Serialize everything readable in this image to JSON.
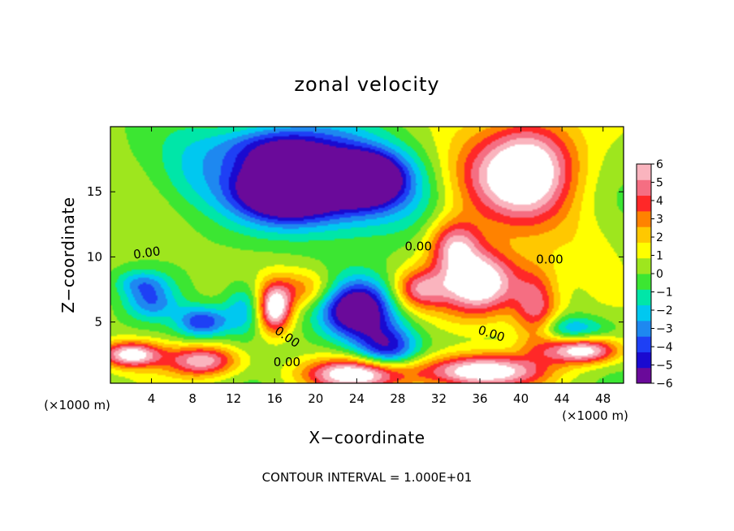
{
  "chart_data": {
    "type": "heatmap",
    "title": "zonal velocity",
    "xlabel": "X−coordinate",
    "ylabel": "Z−coordinate",
    "x_unit": "(×1000 m)",
    "y_unit": "(×1000 m)",
    "xlim": [
      0,
      50
    ],
    "ylim": [
      0.3,
      20
    ],
    "x_ticks": [
      4,
      8,
      12,
      16,
      20,
      24,
      28,
      32,
      36,
      40,
      44,
      48
    ],
    "y_ticks": [
      5,
      10,
      15
    ],
    "x_tick_labels": [
      "4",
      "8",
      "12",
      "16",
      "20",
      "24",
      "28",
      "32",
      "36",
      "40",
      "44",
      "48"
    ],
    "y_tick_labels": [
      "5",
      "10",
      "15"
    ],
    "colorbar": {
      "range": [
        -6,
        6
      ],
      "tick_labels": [
        "6",
        "5",
        "4",
        "3",
        "2",
        "1",
        "0",
        "−1",
        "−2",
        "−3",
        "−4",
        "−5",
        "−6"
      ],
      "colors": [
        "#6a0a9a",
        "#1a0ad0",
        "#1e40f5",
        "#1e88f0",
        "#00c8f0",
        "#00e6a8",
        "#3ce632",
        "#9ee61e",
        "#ffff00",
        "#ffc800",
        "#ff8200",
        "#ff2828",
        "#f56e82",
        "#fab4be"
      ]
    },
    "contour_labels": [
      {
        "text": "0.00",
        "x": 3.6,
        "z": 10.0,
        "rotate": -8
      },
      {
        "text": "0.00",
        "x": 30.0,
        "z": 10.5,
        "rotate": 0
      },
      {
        "text": "0.00",
        "x": 42.8,
        "z": 9.5,
        "rotate": 0
      },
      {
        "text": "0.00",
        "x": 17.0,
        "z": 3.6,
        "rotate": 35
      },
      {
        "text": "0.00",
        "x": 17.2,
        "z": 1.6,
        "rotate": 0
      },
      {
        "text": "0.00",
        "x": 37.0,
        "z": 3.8,
        "rotate": 18
      }
    ],
    "footer": "CONTOUR INTERVAL = 1.000E+01",
    "field_features": [
      {
        "x": 17.0,
        "z": 15.2,
        "value": -7.5,
        "sx": 4.8,
        "sz": 2.2
      },
      {
        "x": 22.0,
        "z": 15.6,
        "value": -6.0,
        "sx": 8.5,
        "sz": 3.4
      },
      {
        "x": 25.0,
        "z": 16.0,
        "value": -7.0,
        "sx": 3.2,
        "sz": 1.8
      },
      {
        "x": 16.0,
        "z": 18.5,
        "value": -4.0,
        "sx": 6.0,
        "sz": 1.8
      },
      {
        "x": 8.0,
        "z": 16.5,
        "value": -1.8,
        "sx": 4.0,
        "sz": 3.0
      },
      {
        "x": 41.0,
        "z": 16.8,
        "value": 6.5,
        "sx": 4.5,
        "sz": 4.0
      },
      {
        "x": 36.0,
        "z": 16.0,
        "value": 3.5,
        "sx": 5.0,
        "sz": 3.5
      },
      {
        "x": 36.0,
        "z": 8.0,
        "value": 7.5,
        "sx": 4.0,
        "sz": 2.5
      },
      {
        "x": 33.5,
        "z": 11.0,
        "value": 4.5,
        "sx": 2.5,
        "sz": 2.0
      },
      {
        "x": 41.5,
        "z": 6.0,
        "value": 4.5,
        "sx": 2.2,
        "sz": 3.0
      },
      {
        "x": 24.0,
        "z": 6.0,
        "value": -7.5,
        "sx": 3.5,
        "sz": 2.2
      },
      {
        "x": 27.0,
        "z": 3.0,
        "value": -5.0,
        "sx": 3.0,
        "sz": 1.8
      },
      {
        "x": 16.0,
        "z": 6.0,
        "value": 6.5,
        "sx": 1.6,
        "sz": 1.8
      },
      {
        "x": 19.0,
        "z": 7.5,
        "value": 3.0,
        "sx": 3.5,
        "sz": 1.5
      },
      {
        "x": 13.0,
        "z": 6.0,
        "value": -3.0,
        "sx": 2.0,
        "sz": 2.0
      },
      {
        "x": 9.0,
        "z": 5.0,
        "value": -4.5,
        "sx": 2.5,
        "sz": 1.2
      },
      {
        "x": 4.0,
        "z": 6.5,
        "value": -3.0,
        "sx": 2.5,
        "sz": 1.3
      },
      {
        "x": 2.0,
        "z": 2.5,
        "value": 6.5,
        "sx": 3.0,
        "sz": 1.0
      },
      {
        "x": 9.0,
        "z": 2.0,
        "value": 5.5,
        "sx": 3.5,
        "sz": 1.2
      },
      {
        "x": 24.0,
        "z": 1.0,
        "value": 7.0,
        "sx": 5.0,
        "sz": 1.2
      },
      {
        "x": 36.0,
        "z": 1.2,
        "value": 7.0,
        "sx": 6.0,
        "sz": 1.3
      },
      {
        "x": 46.0,
        "z": 2.8,
        "value": 6.5,
        "sx": 3.5,
        "sz": 1.0
      },
      {
        "x": 45.0,
        "z": 4.5,
        "value": -3.0,
        "sx": 3.5,
        "sz": 1.0
      },
      {
        "x": 30.0,
        "z": 7.5,
        "value": 4.0,
        "sx": 2.5,
        "sz": 1.5
      },
      {
        "x": 46.0,
        "z": 11.0,
        "value": 1.0,
        "sx": 4.0,
        "sz": 3.0
      },
      {
        "x": 3.0,
        "z": 8.0,
        "value": -2.5,
        "sx": 2.5,
        "sz": 1.0
      }
    ]
  }
}
